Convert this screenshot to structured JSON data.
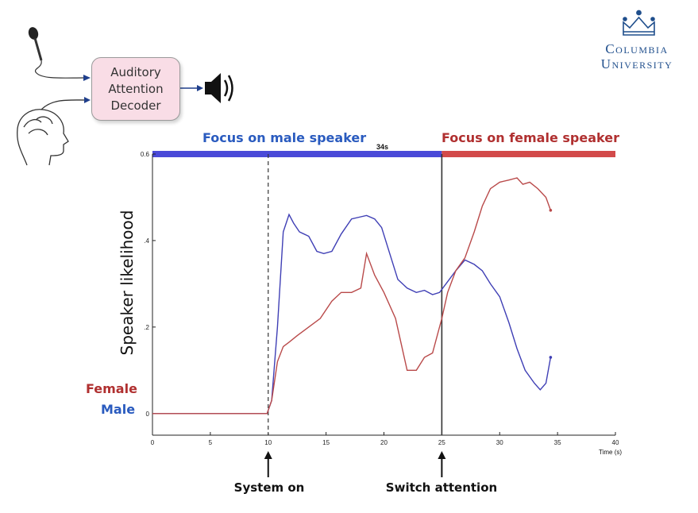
{
  "diagram": {
    "decoder_lines": [
      "Auditory",
      "Attention",
      "Decoder"
    ]
  },
  "logo": {
    "line1": "Columbia",
    "line2": "University",
    "crown_color": "#1f4e8c"
  },
  "bars": {
    "male_label": "Focus on male speaker",
    "female_label": "Focus on female speaker",
    "male_color": "#4a4ad8",
    "female_color": "#d24a4a",
    "switch_label": "34s"
  },
  "legend": {
    "female_label": "Female",
    "male_label": "Male",
    "female_color": "#b03030",
    "male_color": "#2a5bbf"
  },
  "events": {
    "system_on_label": "System on",
    "switch_label": "Switch attention"
  },
  "chart_data": {
    "type": "line",
    "title": "",
    "xlabel": "Time (s)",
    "ylabel": "Speaker likelihood",
    "xlim": [
      0,
      40
    ],
    "ylim": [
      -0.05,
      0.6
    ],
    "xticks": [
      0,
      5,
      10,
      15,
      20,
      25,
      30,
      35,
      40
    ],
    "yticks": [
      0,
      0.2,
      0.4,
      0.6
    ],
    "ytick_labels": [
      "0",
      ".2",
      ".4",
      "0.6"
    ],
    "grid": false,
    "vlines": [
      {
        "x": 10,
        "style": "dashed"
      },
      {
        "x": 25,
        "style": "solid"
      }
    ],
    "series": [
      {
        "name": "Male",
        "color": "#3f3fb5",
        "x": [
          0,
          9.9,
          10.3,
          10.8,
          11.3,
          11.8,
          12.2,
          12.7,
          13.5,
          14.2,
          14.8,
          15.5,
          16.3,
          17.2,
          18.0,
          18.5,
          19.2,
          19.8,
          20.5,
          21.2,
          22.0,
          22.8,
          23.5,
          24.2,
          24.8,
          25.5,
          26.2,
          27.0,
          27.8,
          28.5,
          29.2,
          30.0,
          30.8,
          31.5,
          32.2,
          33.0,
          33.5,
          34.0,
          34.4
        ],
        "y": [
          0,
          0,
          0.03,
          0.2,
          0.42,
          0.46,
          0.44,
          0.42,
          0.41,
          0.375,
          0.37,
          0.375,
          0.415,
          0.45,
          0.455,
          0.458,
          0.45,
          0.43,
          0.37,
          0.31,
          0.29,
          0.28,
          0.285,
          0.275,
          0.28,
          0.305,
          0.33,
          0.355,
          0.345,
          0.33,
          0.3,
          0.27,
          0.21,
          0.15,
          0.1,
          0.07,
          0.055,
          0.07,
          0.13
        ]
      },
      {
        "name": "Female",
        "color": "#b94a4a",
        "x": [
          0,
          9.9,
          10.3,
          10.8,
          11.3,
          11.8,
          12.5,
          13.5,
          14.5,
          15.5,
          16.3,
          17.2,
          18.0,
          18.5,
          19.2,
          20.0,
          21.0,
          22.0,
          22.8,
          23.5,
          24.2,
          25.0,
          25.5,
          26.2,
          27.0,
          27.8,
          28.5,
          29.2,
          30.0,
          30.8,
          31.5,
          32.0,
          32.6,
          33.3,
          34.0,
          34.4
        ],
        "y": [
          0,
          0,
          0.03,
          0.12,
          0.155,
          0.165,
          0.18,
          0.2,
          0.22,
          0.26,
          0.28,
          0.28,
          0.29,
          0.37,
          0.32,
          0.28,
          0.22,
          0.1,
          0.1,
          0.13,
          0.14,
          0.22,
          0.28,
          0.33,
          0.36,
          0.42,
          0.48,
          0.52,
          0.535,
          0.54,
          0.545,
          0.53,
          0.535,
          0.52,
          0.5,
          0.47
        ]
      }
    ]
  }
}
